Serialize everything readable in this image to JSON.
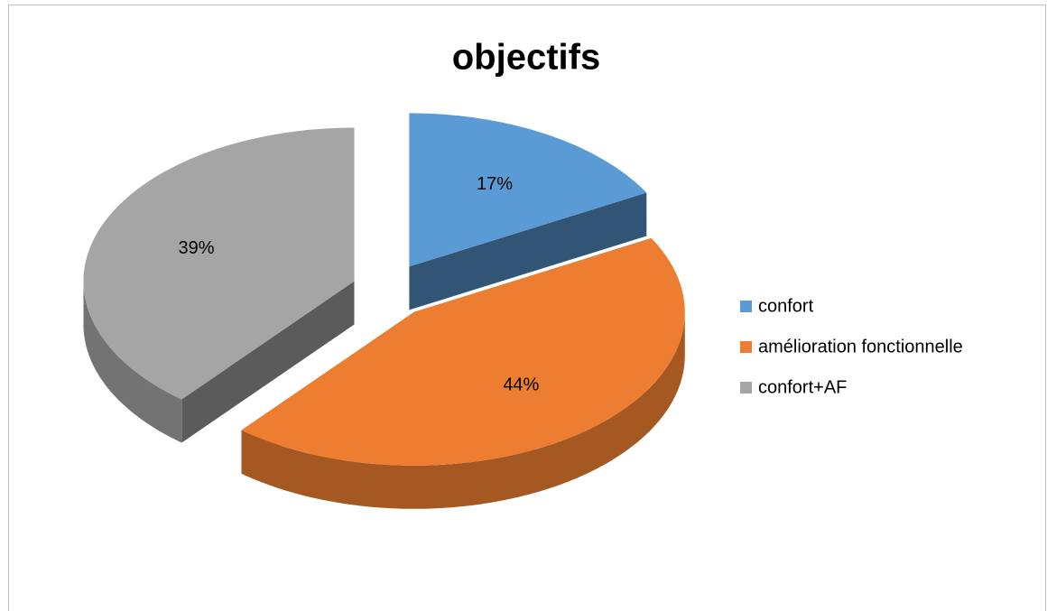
{
  "chart_data": {
    "type": "pie",
    "title": "objectifs",
    "categories": [
      "confort",
      "amélioration fonctionnelle",
      "confort+AF"
    ],
    "values": [
      17,
      44,
      39
    ],
    "value_labels": [
      "17%",
      "44%",
      "39%"
    ],
    "colors": [
      "#5b9bd5",
      "#ed7d31",
      "#a5a5a5"
    ],
    "legend": "right"
  }
}
